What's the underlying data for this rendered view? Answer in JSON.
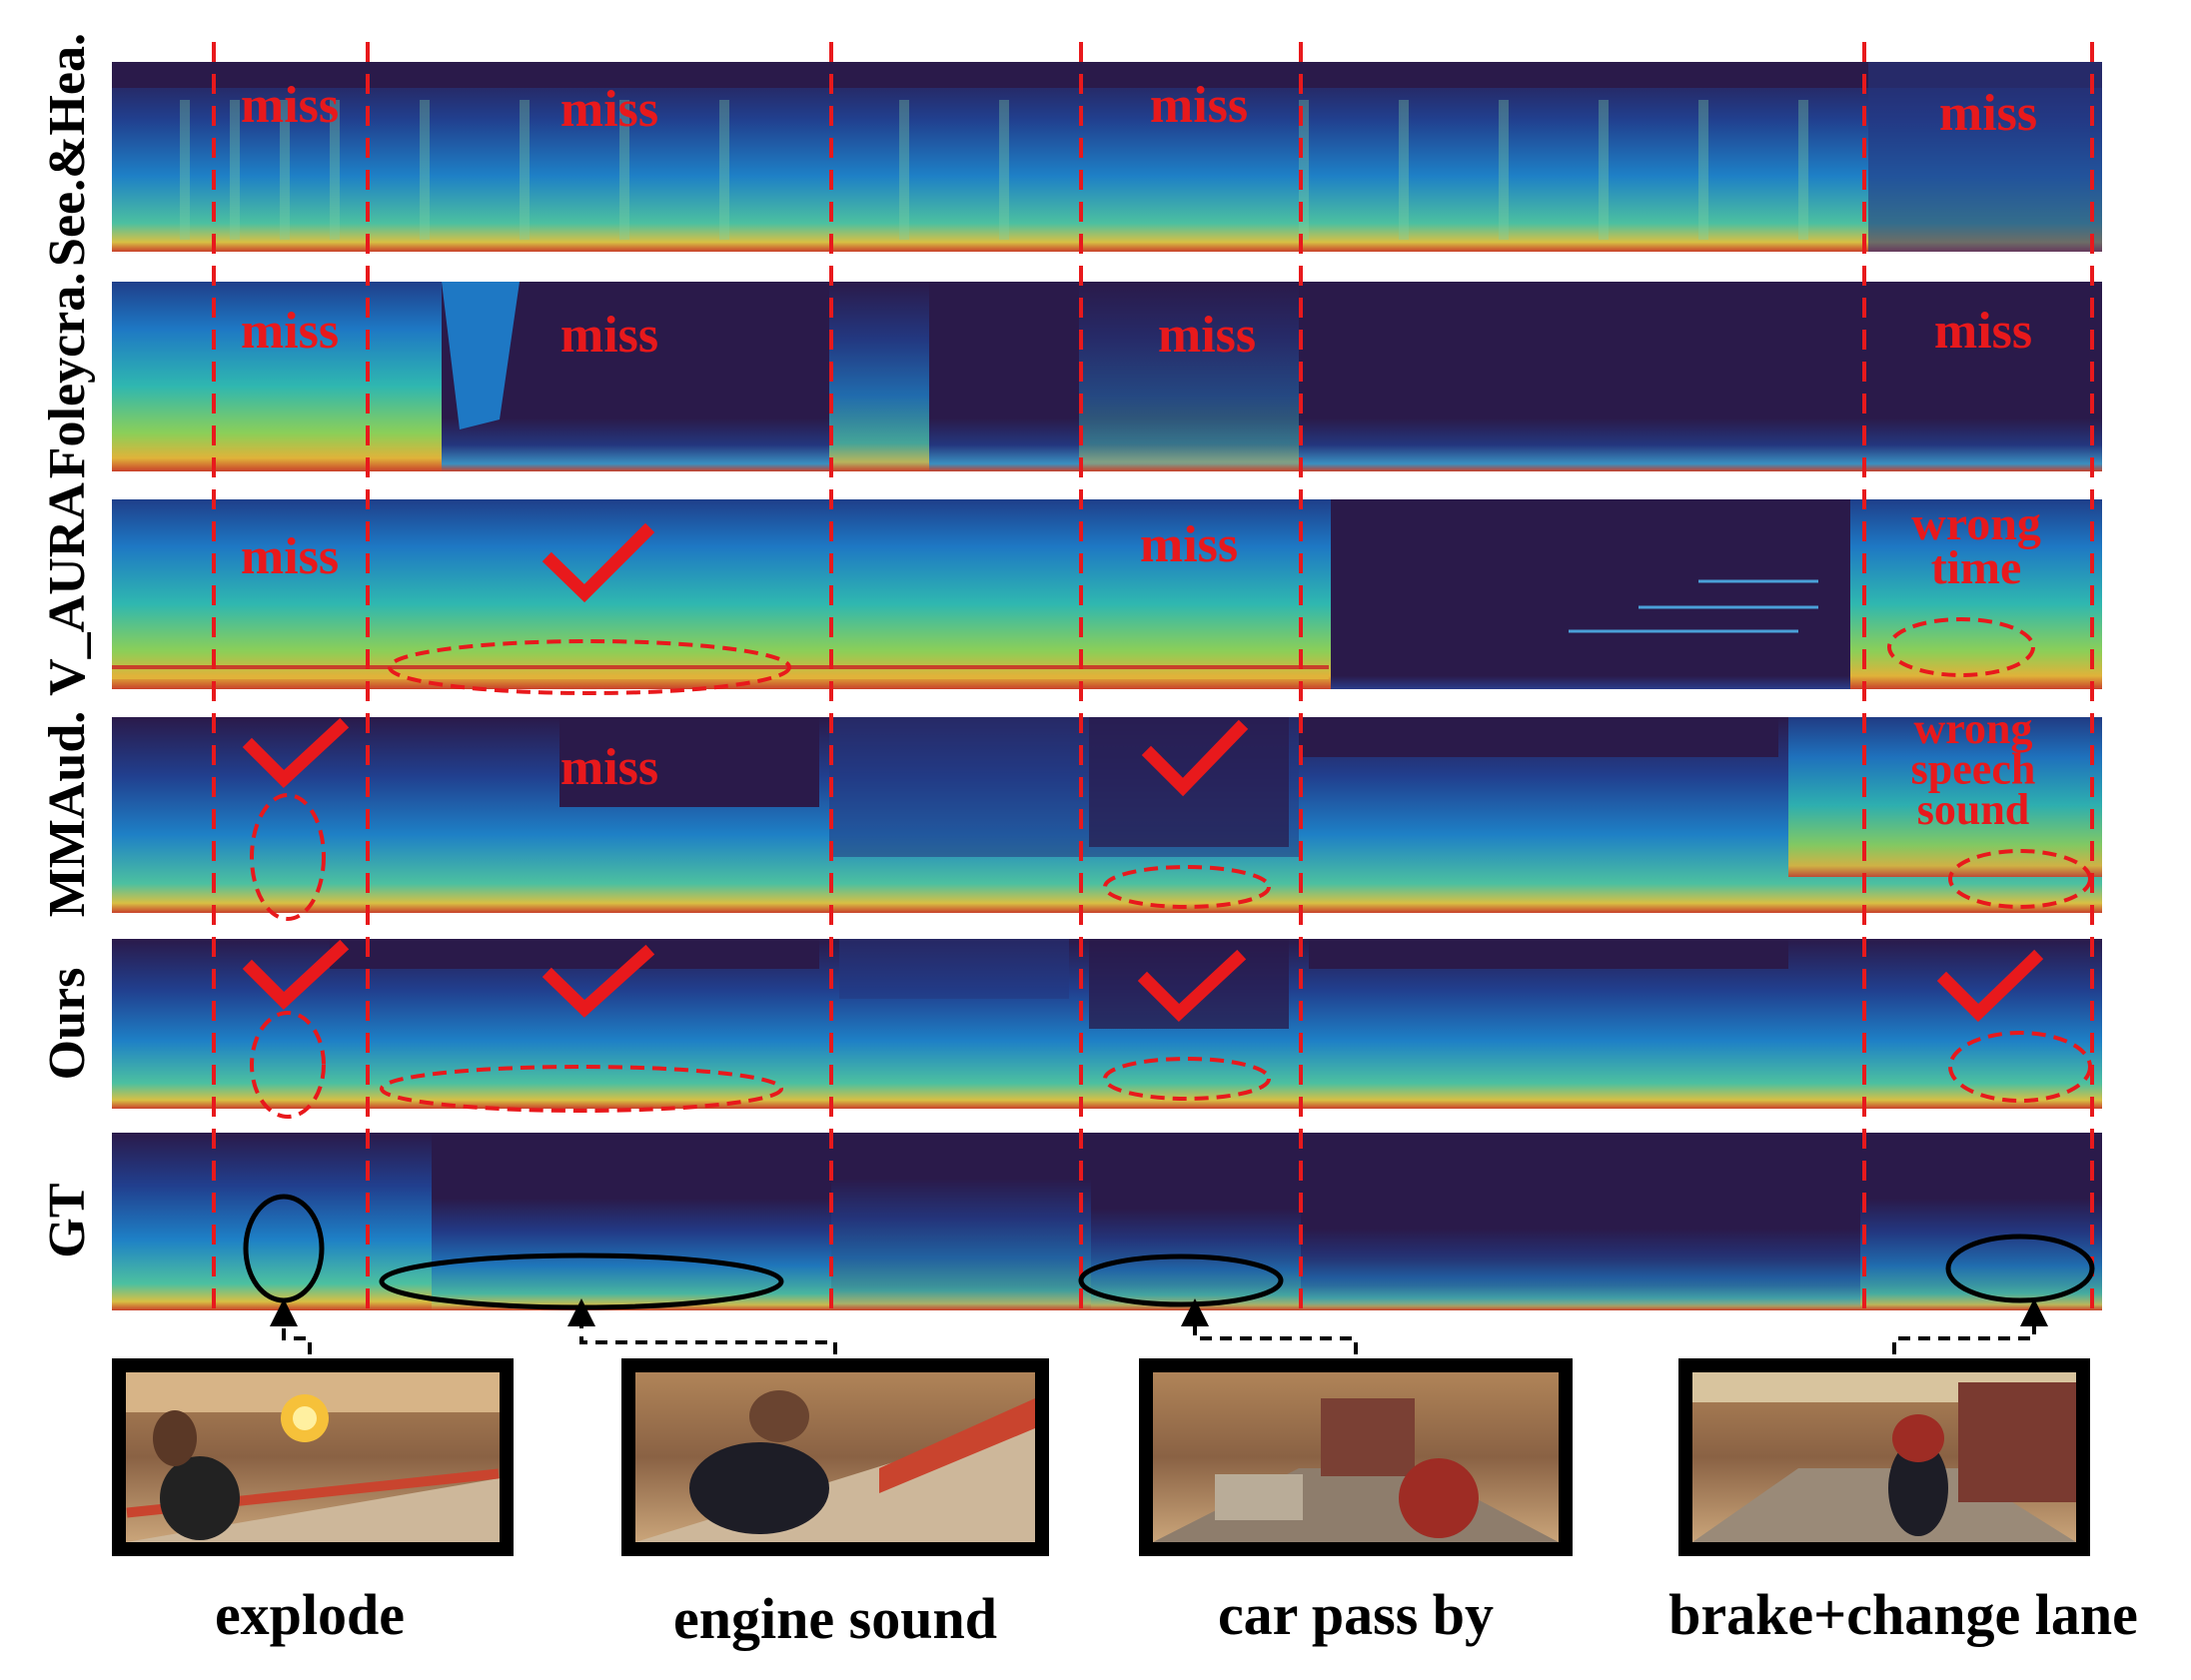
{
  "rows": [
    {
      "label": "See.&Hea.",
      "annotations": [
        {
          "seg": 0,
          "kind": "text",
          "text": "miss"
        },
        {
          "seg": 1,
          "kind": "text",
          "text": "miss"
        },
        {
          "seg": 3,
          "kind": "text",
          "text": "miss"
        },
        {
          "seg": 5,
          "kind": "text",
          "text": "miss"
        }
      ]
    },
    {
      "label": "Foleycra.",
      "annotations": [
        {
          "seg": 0,
          "kind": "text",
          "text": "miss"
        },
        {
          "seg": 1,
          "kind": "text",
          "text": "miss"
        },
        {
          "seg": 3,
          "kind": "text",
          "text": "miss"
        },
        {
          "seg": 5,
          "kind": "text",
          "text": "miss"
        }
      ]
    },
    {
      "label": "V_AURA",
      "annotations": [
        {
          "seg": 0,
          "kind": "text",
          "text": "miss"
        },
        {
          "seg": 1,
          "kind": "check"
        },
        {
          "seg": 3,
          "kind": "text",
          "text": "miss"
        },
        {
          "seg": 5,
          "kind": "text",
          "text": "wrong time"
        }
      ]
    },
    {
      "label": "MMAud.",
      "annotations": [
        {
          "seg": 0,
          "kind": "check"
        },
        {
          "seg": 1,
          "kind": "text",
          "text": "miss"
        },
        {
          "seg": 3,
          "kind": "check"
        },
        {
          "seg": 5,
          "kind": "text",
          "text": "wrong speech sound"
        }
      ]
    },
    {
      "label": "Ours",
      "annotations": [
        {
          "seg": 0,
          "kind": "check"
        },
        {
          "seg": 1,
          "kind": "check"
        },
        {
          "seg": 3,
          "kind": "check"
        },
        {
          "seg": 5,
          "kind": "check"
        }
      ]
    },
    {
      "label": "GT",
      "annotations": []
    }
  ],
  "events": [
    {
      "caption": "explode"
    },
    {
      "caption": "engine sound"
    },
    {
      "caption": "car pass by"
    },
    {
      "caption": "brake+change lane"
    }
  ],
  "colors": {
    "annotation": "#e8191c",
    "spec_dark": "#2a1a4a",
    "spec_mid": "#1f6fbf",
    "spec_hot": "#d9b53a"
  }
}
